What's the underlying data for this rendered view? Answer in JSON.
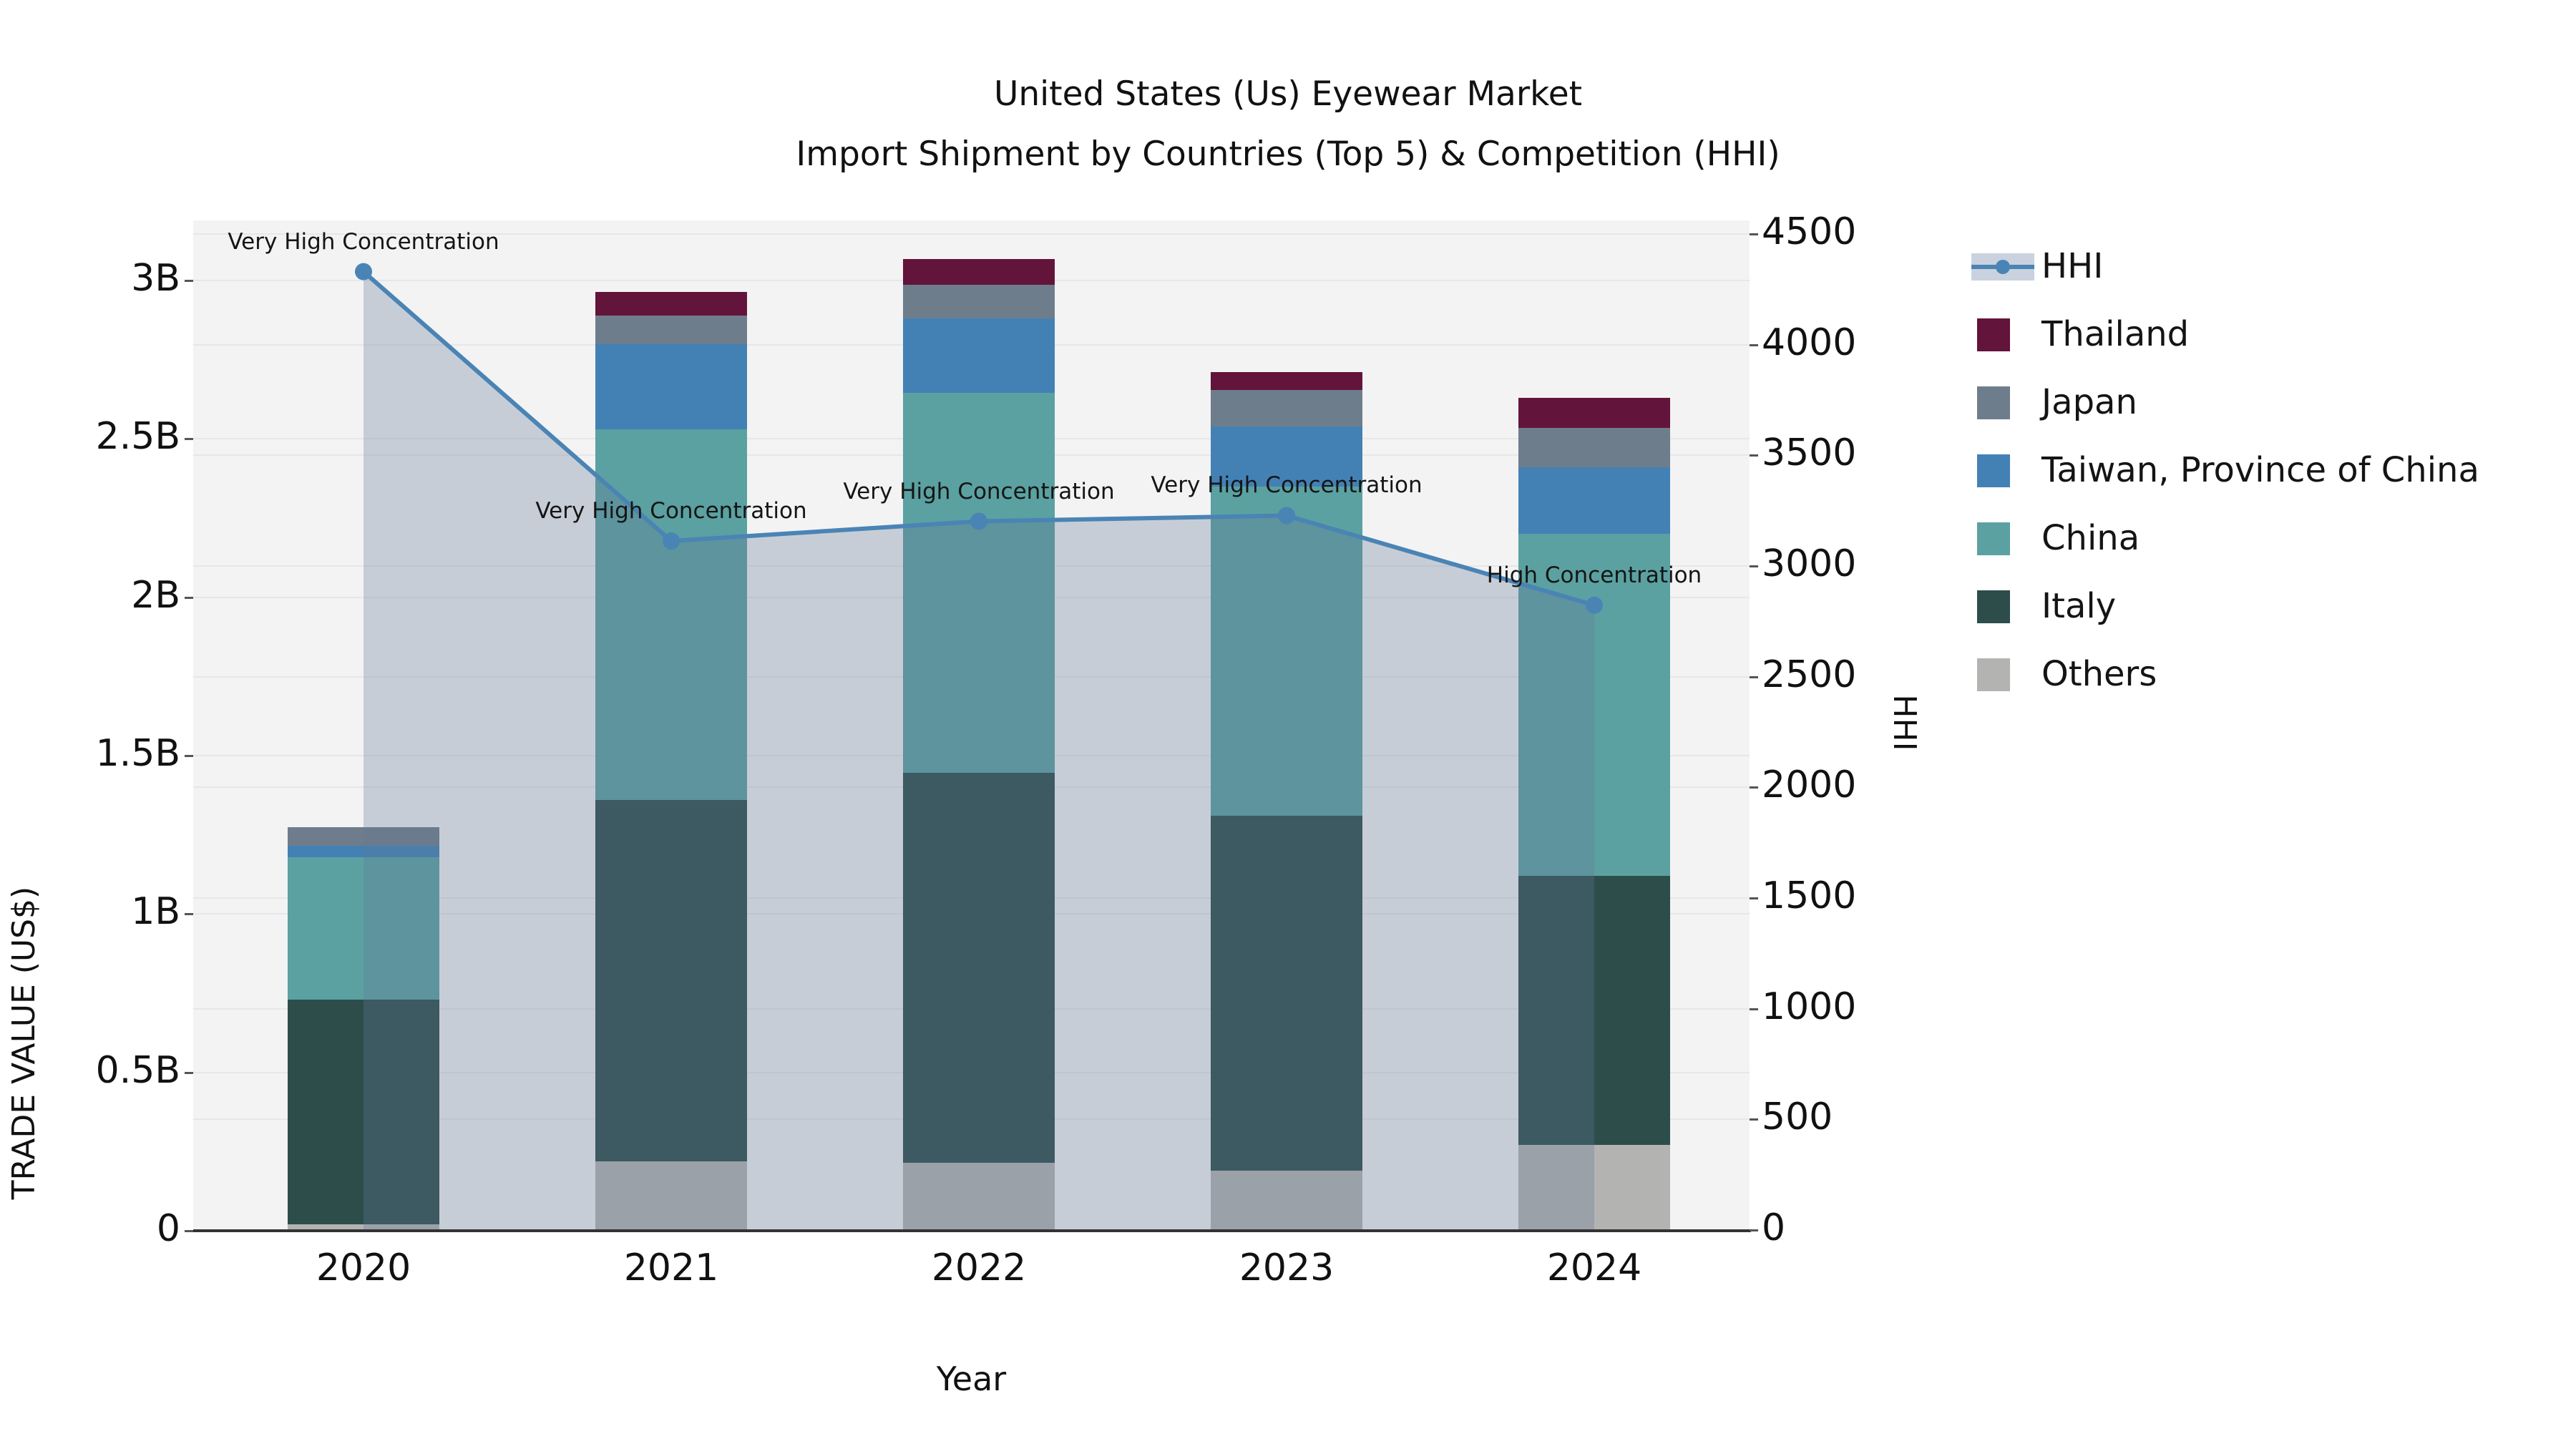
{
  "title": {
    "line1": "United States (Us) Eyewear Market",
    "line2": "Import Shipment by Countries (Top 5) & Competition (HHI)"
  },
  "axes": {
    "left": {
      "label": "TRADE VALUE (US$)",
      "ticks": [
        "0",
        "0.5B",
        "1B",
        "1.5B",
        "2B",
        "2.5B",
        "3B"
      ],
      "tick_values": [
        0,
        0.5,
        1,
        1.5,
        2,
        2.5,
        3
      ],
      "max": 3.0
    },
    "right": {
      "label": "HHI",
      "ticks": [
        "0",
        "500",
        "1000",
        "1500",
        "2000",
        "2500",
        "3000",
        "3500",
        "4000",
        "4500"
      ],
      "tick_values": [
        0,
        500,
        1000,
        1500,
        2000,
        2500,
        3000,
        3500,
        4000,
        4500
      ],
      "max": 4500
    },
    "x": {
      "label": "Year",
      "categories": [
        "2020",
        "2021",
        "2022",
        "2023",
        "2024"
      ]
    }
  },
  "legend": [
    {
      "label": "HHI",
      "type": "line"
    },
    {
      "label": "Thailand",
      "color": "#63143a"
    },
    {
      "label": "Japan",
      "color": "#6e7d8c"
    },
    {
      "label": "Taiwan, Province of China",
      "color": "#4381b4"
    },
    {
      "label": "China",
      "color": "#5ba1a1"
    },
    {
      "label": "Italy",
      "color": "#2d4d4b"
    },
    {
      "label": "Others",
      "color": "#b3b4b2"
    }
  ],
  "chart_data": {
    "type": "bar",
    "subtype": "stacked-bars-with-line",
    "title": "United States (Us) Eyewear Market Import Shipment by Countries (Top 5) & Competition (HHI)",
    "xlabel": "Year",
    "ylabel_left": "TRADE VALUE (US$)",
    "ylabel_right": "HHI",
    "ylim_left_billions": [
      0,
      3.0
    ],
    "ylim_right": [
      0,
      4500
    ],
    "grid": true,
    "legend_position": "right",
    "categories": [
      "2020",
      "2021",
      "2022",
      "2023",
      "2024"
    ],
    "unit": "billions US$",
    "series": [
      {
        "name": "Others",
        "color": "#b3b4b2",
        "values": [
          0.02,
          0.22,
          0.215,
          0.19,
          0.27
        ]
      },
      {
        "name": "Italy",
        "color": "#2d4d4b",
        "values": [
          0.71,
          1.14,
          1.23,
          1.12,
          0.85
        ]
      },
      {
        "name": "China",
        "color": "#5ba1a1",
        "values": [
          0.45,
          1.17,
          1.2,
          1.04,
          1.08
        ]
      },
      {
        "name": "Taiwan, Province of China",
        "color": "#4381b4",
        "values": [
          0.035,
          0.27,
          0.235,
          0.19,
          0.21
        ]
      },
      {
        "name": "Japan",
        "color": "#6e7d8c",
        "values": [
          0.058,
          0.09,
          0.107,
          0.115,
          0.125
        ]
      },
      {
        "name": "Thailand",
        "color": "#63143a",
        "values": [
          0.0,
          0.073,
          0.08,
          0.055,
          0.095
        ]
      }
    ],
    "line_series": {
      "name": "HHI",
      "color": "#4a84b5",
      "fill_color": "rgba(100,120,150,0.30)",
      "values": [
        4330,
        3113,
        3202,
        3228,
        2823
      ]
    },
    "annotations": [
      {
        "category": "2020",
        "text": "Very High Concentration"
      },
      {
        "category": "2021",
        "text": "Very High Concentration"
      },
      {
        "category": "2022",
        "text": "Very High Concentration"
      },
      {
        "category": "2023",
        "text": "Very High Concentration"
      },
      {
        "category": "2024",
        "text": "High Concentration"
      }
    ],
    "colors": {
      "plot_background": "#f3f3f4",
      "gridline": "#e7e7e9",
      "axis_line": "#333333",
      "text": "#1a1a1a"
    }
  }
}
